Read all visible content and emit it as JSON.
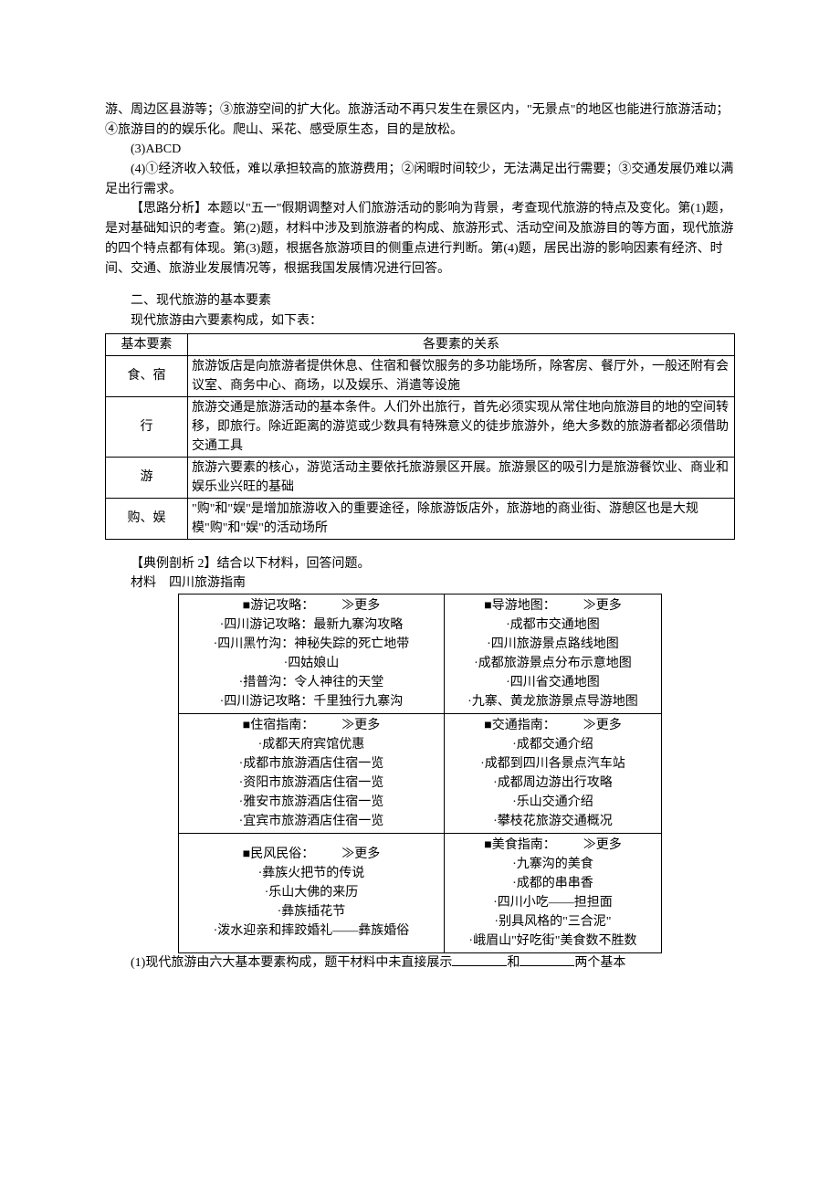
{
  "intro_paras": [
    "游、周边区县游等；③旅游空间的扩大化。旅游活动不再只发生在景区内，\"无景点\"的地区也能进行旅游活动；④旅游目的的娱乐化。爬山、采花、感受原生态，目的是放松。",
    "(3)ABCD",
    "(4)①经济收入较低，难以承担较高的旅游费用；②闲暇时间较少，无法满足出行需要；③交通发展仍难以满足出行需求。",
    "【思路分析】本题以\"五一\"假期调整对人们旅游活动的影响为背景，考查现代旅游的特点及变化。第(1)题，是对基础知识的考查。第(2)题，材料中涉及到旅游者的构成、旅游形式、活动空间及旅游目的等方面，现代旅游的四个特点都有体现。第(3)题，根据各旅游项目的侧重点进行判断。第(4)题，居民出游的影响因素有经济、时间、交通、旅游业发展情况等，根据我国发展情况进行回答。"
  ],
  "section2": {
    "heading": "二、现代旅游的基本要素",
    "sub": "现代旅游由六要素构成，如下表："
  },
  "table1": {
    "head": [
      "基本要素",
      "各要素的关系"
    ],
    "rows": [
      [
        "食、宿",
        "旅游饭店是向旅游者提供休息、住宿和餐饮服务的多功能场所，除客房、餐厅外，一般还附有会议室、商务中心、商场，以及娱乐、消遣等设施"
      ],
      [
        "行",
        "旅游交通是旅游活动的基本条件。人们外出旅行，首先必须实现从常住地向旅游目的地的空间转移，即旅行。除近距离的游览或少数具有特殊意义的徒步旅游外，绝大多数的旅游者都必须借助交通工具"
      ],
      [
        "游",
        "旅游六要素的核心，游览活动主要依托旅游景区开展。旅游景区的吸引力是旅游餐饮业、商业和娱乐业兴旺的基础"
      ],
      [
        "购、娱",
        "\"购\"和\"娱\"是增加旅游收入的重要途径，除旅游饭店外，旅游地的商业街、游憩区也是大规模\"购\"和\"娱\"的活动场所"
      ]
    ]
  },
  "example2": {
    "title": "【典例剖析 2】结合以下材料，回答问题。",
    "mat": "材料　四川旅游指南"
  },
  "more": "≫更多",
  "guide": {
    "r0": {
      "left": {
        "title": "■游记攻略：",
        "items": [
          "·四川游记攻略：最新九寨沟攻略",
          "·四川黑竹沟：神秘失踪的死亡地带",
          "·四姑娘山",
          "·措普沟：令人神往的天堂",
          "·四川游记攻略：千里独行九寨沟"
        ]
      },
      "right": {
        "title": "■导游地图：",
        "items": [
          "·成都市交通地图",
          "·四川旅游景点路线地图",
          "·成都旅游景点分布示意地图",
          "·四川省交通地图",
          "·九寨、黄龙旅游景点导游地图"
        ]
      }
    },
    "r1": {
      "left": {
        "title": "■住宿指南：",
        "items": [
          "·成都天府宾馆优惠",
          "·成都市旅游酒店住宿一览",
          "·资阳市旅游酒店住宿一览",
          "·雅安市旅游酒店住宿一览",
          "·宜宾市旅游酒店住宿一览"
        ]
      },
      "right": {
        "title": "■交通指南：",
        "items": [
          "·成都交通介绍",
          "·成都到四川各景点汽车站",
          "·成都周边游出行攻略",
          "·乐山交通介绍",
          "·攀枝花旅游交通概况"
        ]
      }
    },
    "r2": {
      "left": {
        "title": "■民风民俗：",
        "items": [
          "·彝族火把节的传说",
          "·乐山大佛的来历",
          "·彝族插花节",
          "·泼水迎亲和摔跤婚礼——彝族婚俗"
        ]
      },
      "right": {
        "title": "■美食指南：",
        "items": [
          "·九寨沟的美食",
          "·成都的串串香",
          "·四川小吃——担担面",
          "·别具风格的\"三合泥\"",
          "·峨眉山\"好吃街\"美食数不胜数"
        ]
      }
    }
  },
  "q1": {
    "pre": "(1)现代旅游由六大基本要素构成，题干材料中未直接展示",
    "mid": "和",
    "post": "两个基本"
  }
}
